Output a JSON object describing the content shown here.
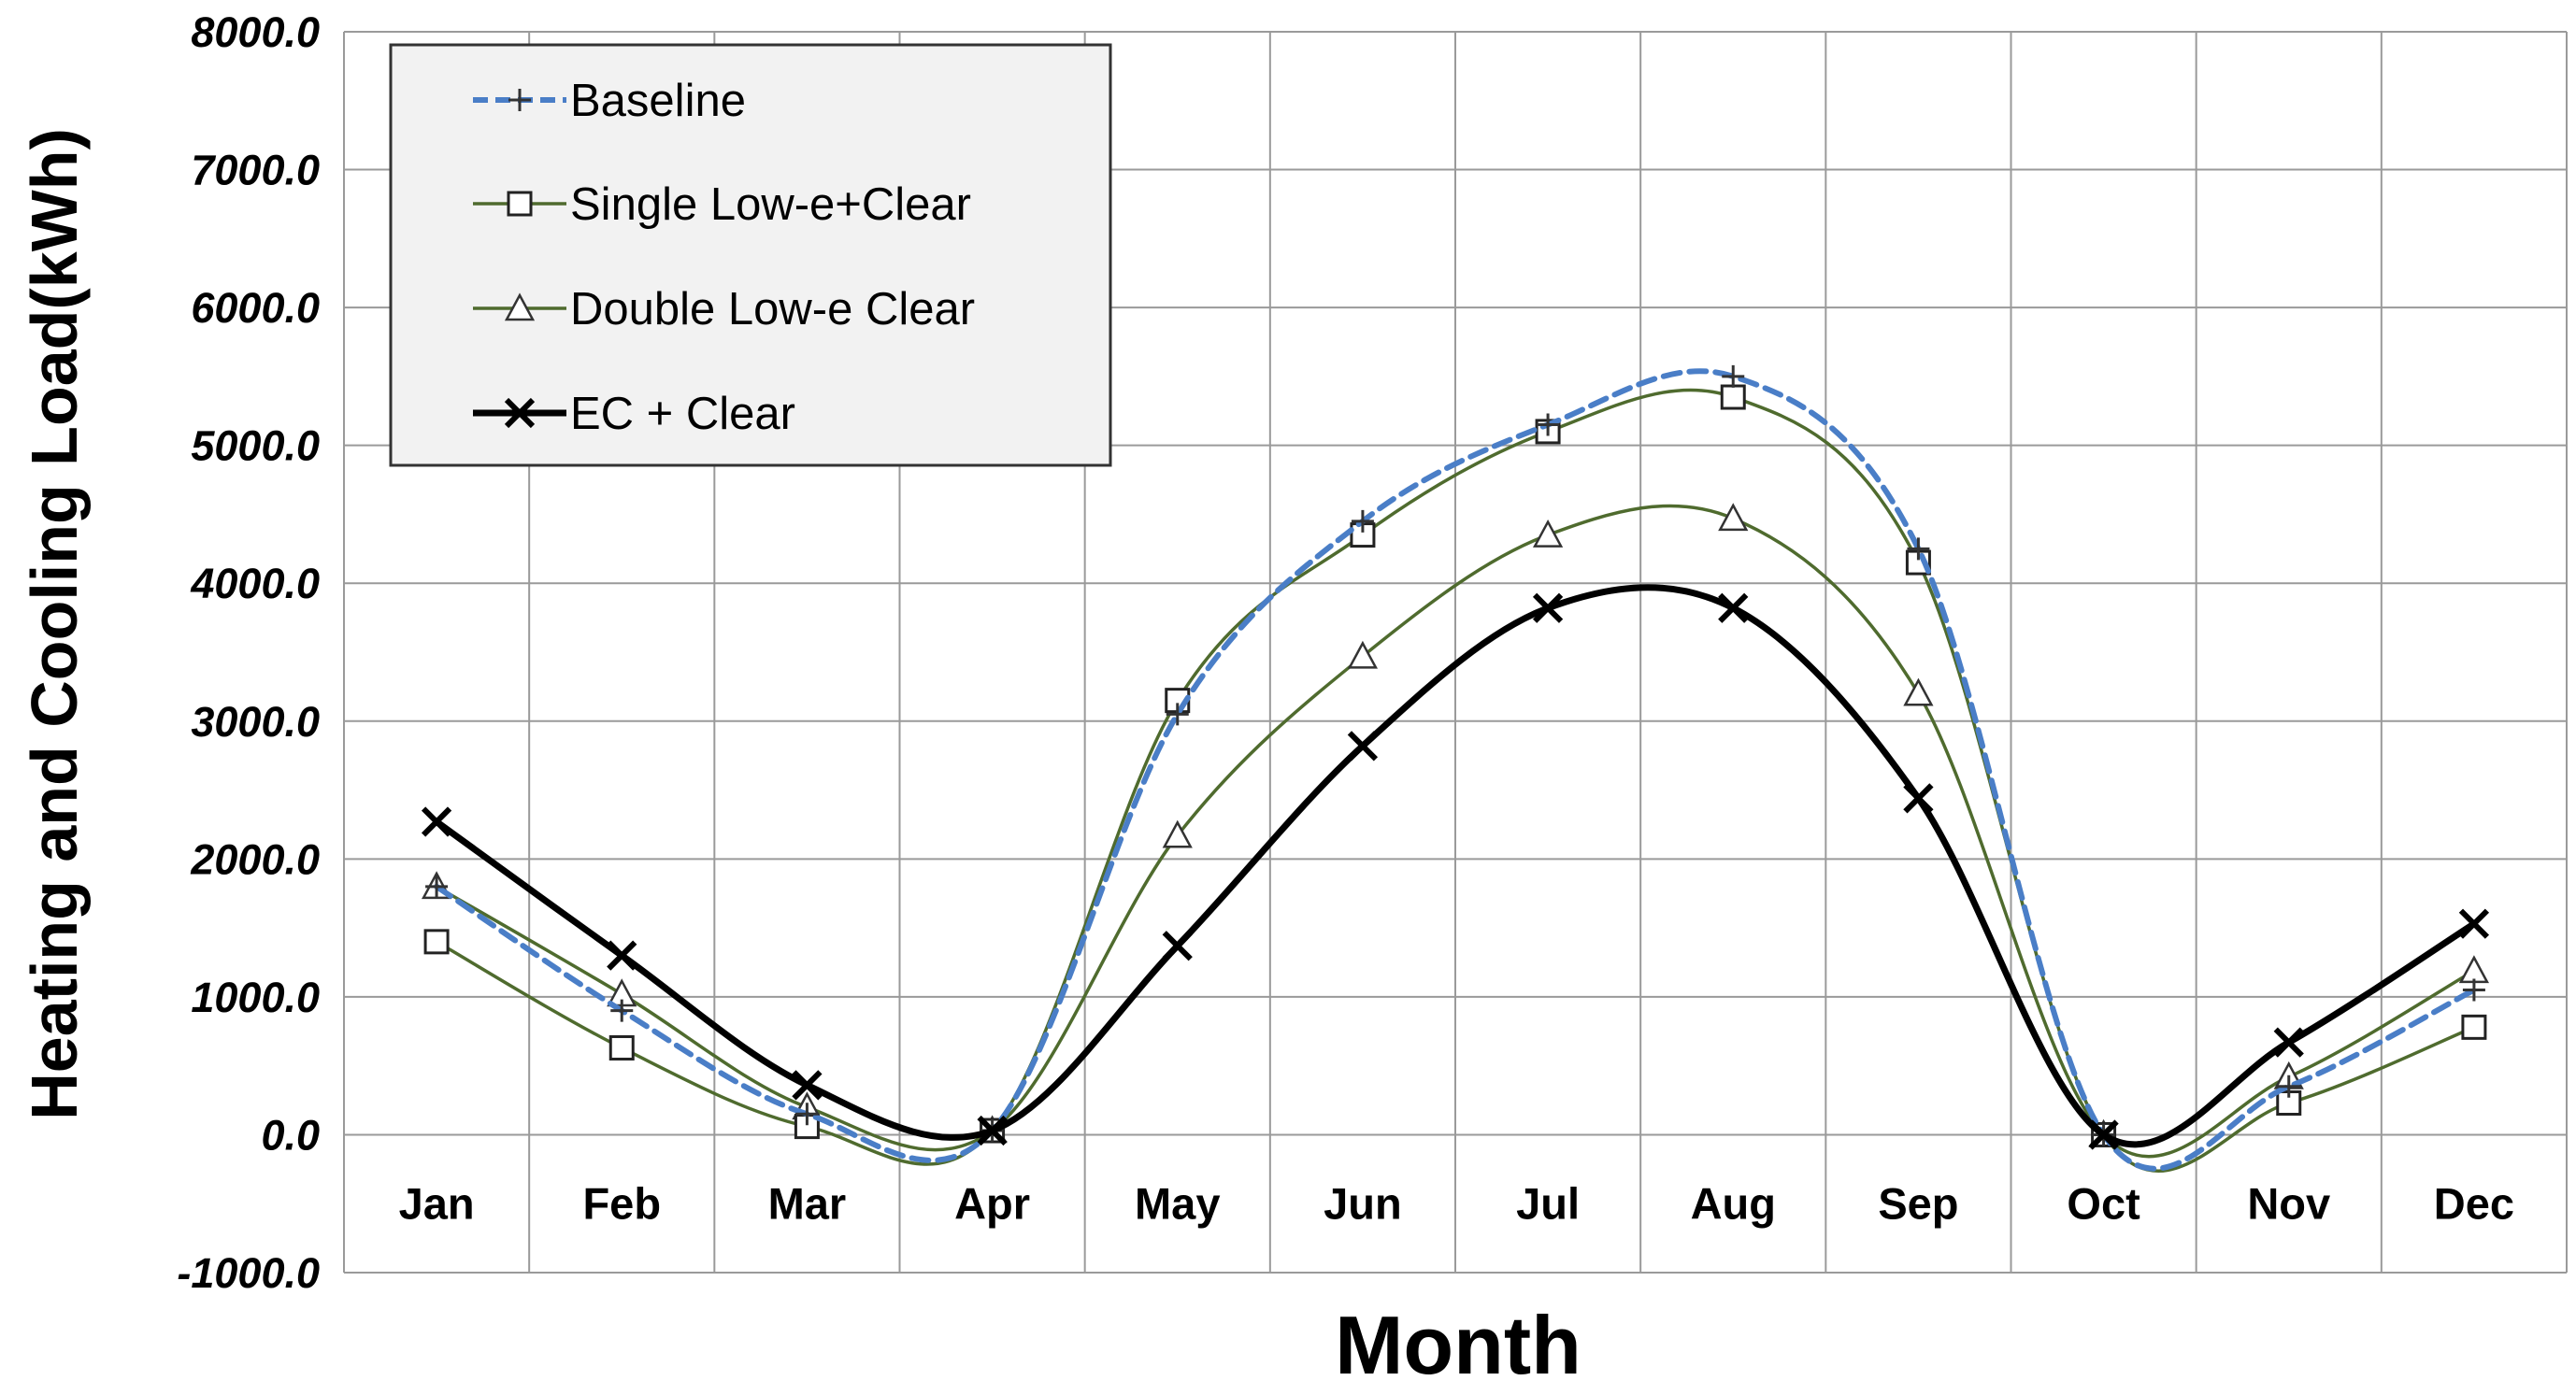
{
  "chart_data": {
    "type": "line",
    "title": "",
    "xlabel": "Month",
    "ylabel": "Heating and Cooling Load(kWh)",
    "categories": [
      "Jan",
      "Feb",
      "Mar",
      "Apr",
      "May",
      "Jun",
      "Jul",
      "Aug",
      "Sep",
      "Oct",
      "Nov",
      "Dec"
    ],
    "ylim": [
      -1000,
      8000
    ],
    "yticks": [
      -1000,
      0,
      1000,
      2000,
      3000,
      4000,
      5000,
      6000,
      7000,
      8000
    ],
    "ytick_labels": [
      "-1000.0",
      "0.0",
      "1000.0",
      "2000.0",
      "3000.0",
      "4000.0",
      "5000.0",
      "6000.0",
      "7000.0",
      "8000.0"
    ],
    "grid": true,
    "legend_position": "top-left",
    "series": [
      {
        "name": "Baseline",
        "marker": "plus",
        "color": "#4a7ec7",
        "dashed": true,
        "values": [
          1800,
          900,
          150,
          30,
          3050,
          4450,
          5150,
          5500,
          4250,
          0,
          350,
          1050
        ]
      },
      {
        "name": "Single Low-e+Clear",
        "marker": "square",
        "color": "#4f6b2e",
        "dashed": false,
        "values": [
          1400,
          630,
          60,
          30,
          3150,
          4350,
          5100,
          5350,
          4150,
          0,
          230,
          780
        ]
      },
      {
        "name": "Double Low-e Clear",
        "marker": "triangle",
        "color": "#4f6b2e",
        "dashed": false,
        "values": [
          1800,
          1020,
          200,
          30,
          2170,
          3470,
          4350,
          4470,
          3200,
          0,
          420,
          1190
        ]
      },
      {
        "name": "EC + Clear",
        "marker": "x",
        "color": "#000000",
        "dashed": false,
        "values": [
          2270,
          1300,
          360,
          30,
          1370,
          2820,
          3820,
          3820,
          2440,
          0,
          670,
          1530
        ]
      }
    ]
  }
}
